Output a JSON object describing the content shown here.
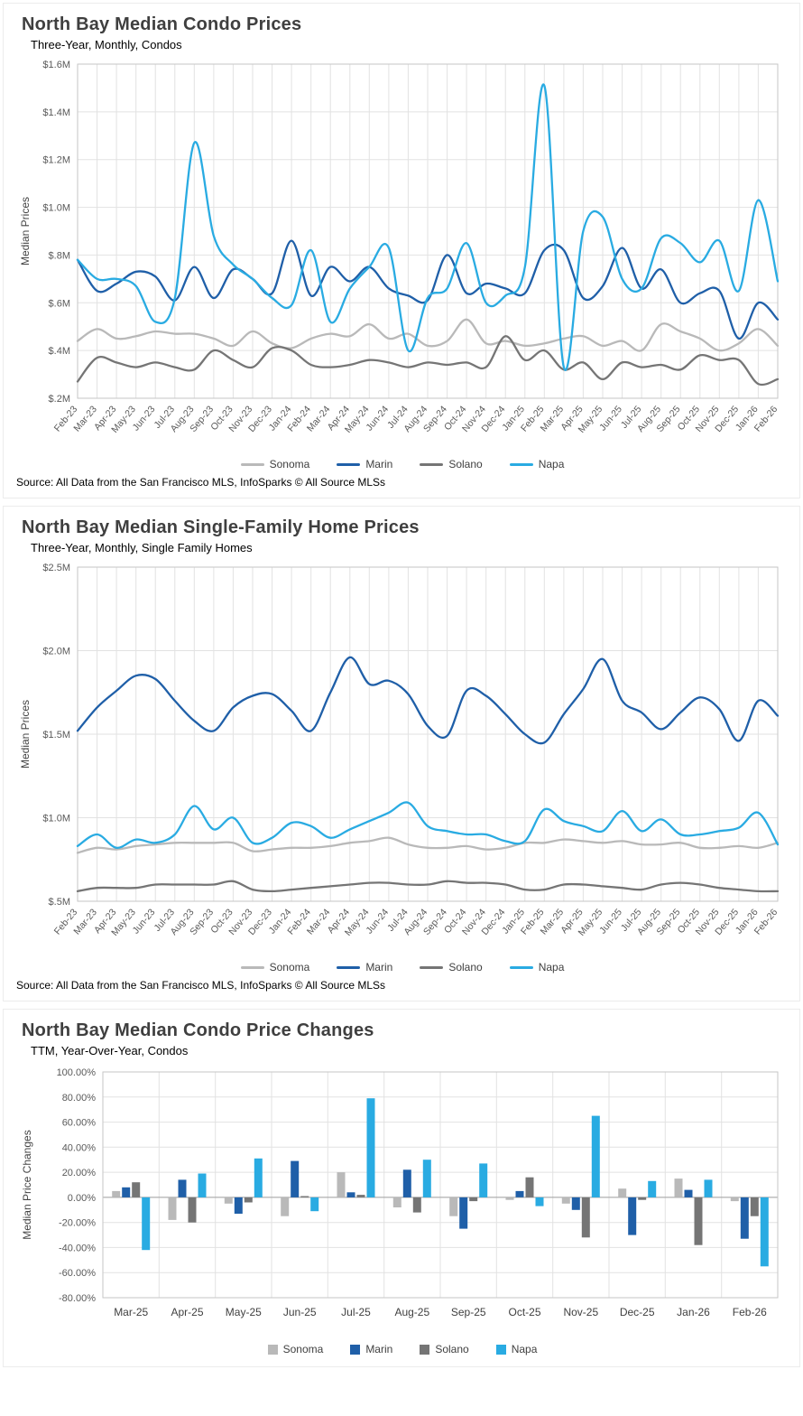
{
  "chart_data": [
    {
      "type": "line",
      "title": "North Bay Median Condo Prices",
      "subtitle": "Three-Year, Monthly, Condos",
      "ylabel": "Median Prices",
      "ylim": [
        0.2,
        1.6
      ],
      "ytick_step": 0.2,
      "ytick_format": "money_m",
      "grid": true,
      "legend_position": "bottom",
      "source": "Source: All Data from the San Francisco MLS, InfoSparks © All Source MLSs",
      "categories": [
        "Feb-23",
        "Mar-23",
        "Apr-23",
        "May-23",
        "Jun-23",
        "Jul-23",
        "Aug-23",
        "Sep-23",
        "Oct-23",
        "Nov-23",
        "Dec-23",
        "Jan-24",
        "Feb-24",
        "Mar-24",
        "Apr-24",
        "May-24",
        "Jun-24",
        "Jul-24",
        "Aug-24",
        "Sep-24",
        "Oct-24",
        "Nov-24",
        "Dec-24",
        "Jan-25",
        "Feb-25",
        "Mar-25",
        "Apr-25",
        "May-25",
        "Jun-25",
        "Jul-25",
        "Aug-25",
        "Sep-25",
        "Oct-25",
        "Nov-25",
        "Dec-25",
        "Jan-26",
        "Feb-26"
      ],
      "series": [
        {
          "name": "Sonoma",
          "color": "#b9b9b9",
          "values": [
            0.44,
            0.49,
            0.45,
            0.46,
            0.48,
            0.47,
            0.47,
            0.45,
            0.42,
            0.48,
            0.43,
            0.41,
            0.45,
            0.47,
            0.46,
            0.51,
            0.45,
            0.47,
            0.42,
            0.44,
            0.53,
            0.43,
            0.44,
            0.42,
            0.43,
            0.45,
            0.46,
            0.42,
            0.44,
            0.4,
            0.51,
            0.48,
            0.45,
            0.4,
            0.43,
            0.49,
            0.42
          ]
        },
        {
          "name": "Marin",
          "color": "#1f5fa8",
          "values": [
            0.78,
            0.65,
            0.68,
            0.73,
            0.71,
            0.61,
            0.75,
            0.62,
            0.74,
            0.7,
            0.64,
            0.86,
            0.63,
            0.75,
            0.69,
            0.75,
            0.66,
            0.63,
            0.61,
            0.8,
            0.64,
            0.68,
            0.66,
            0.64,
            0.82,
            0.82,
            0.62,
            0.67,
            0.83,
            0.66,
            0.74,
            0.6,
            0.64,
            0.65,
            0.45,
            0.6,
            0.53
          ]
        },
        {
          "name": "Solano",
          "color": "#757575",
          "values": [
            0.27,
            0.37,
            0.35,
            0.33,
            0.35,
            0.33,
            0.32,
            0.4,
            0.36,
            0.33,
            0.41,
            0.4,
            0.34,
            0.33,
            0.34,
            0.36,
            0.35,
            0.33,
            0.35,
            0.34,
            0.35,
            0.33,
            0.46,
            0.36,
            0.4,
            0.32,
            0.35,
            0.28,
            0.35,
            0.33,
            0.34,
            0.32,
            0.38,
            0.36,
            0.36,
            0.26,
            0.28
          ]
        },
        {
          "name": "Napa",
          "color": "#29abe2",
          "values": [
            0.78,
            0.7,
            0.7,
            0.67,
            0.52,
            0.62,
            1.27,
            0.88,
            0.76,
            0.7,
            0.62,
            0.59,
            0.82,
            0.52,
            0.66,
            0.75,
            0.83,
            0.4,
            0.62,
            0.66,
            0.85,
            0.6,
            0.63,
            0.75,
            1.51,
            0.33,
            0.9,
            0.96,
            0.7,
            0.66,
            0.87,
            0.85,
            0.77,
            0.86,
            0.65,
            1.03,
            0.69
          ]
        }
      ]
    },
    {
      "type": "line",
      "title": "North Bay Median Single-Family Home Prices",
      "subtitle": "Three-Year, Monthly, Single Family Homes",
      "ylabel": "Median Prices",
      "ylim": [
        0.5,
        2.5
      ],
      "ytick_step": 0.5,
      "ytick_format": "money_m",
      "grid": true,
      "legend_position": "bottom",
      "source": "Source: All Data from the San Francisco MLS, InfoSparks © All Source MLSs",
      "categories": [
        "Feb-23",
        "Mar-23",
        "Apr-23",
        "May-23",
        "Jun-23",
        "Jul-23",
        "Aug-23",
        "Sep-23",
        "Oct-23",
        "Nov-23",
        "Dec-23",
        "Jan-24",
        "Feb-24",
        "Mar-24",
        "Apr-24",
        "May-24",
        "Jun-24",
        "Jul-24",
        "Aug-24",
        "Sep-24",
        "Oct-24",
        "Nov-24",
        "Dec-24",
        "Jan-25",
        "Feb-25",
        "Mar-25",
        "Apr-25",
        "May-25",
        "Jun-25",
        "Jul-25",
        "Aug-25",
        "Sep-25",
        "Oct-25",
        "Nov-25",
        "Dec-25",
        "Jan-26",
        "Feb-26"
      ],
      "series": [
        {
          "name": "Sonoma",
          "color": "#b9b9b9",
          "values": [
            0.79,
            0.82,
            0.81,
            0.83,
            0.84,
            0.85,
            0.85,
            0.85,
            0.85,
            0.8,
            0.81,
            0.82,
            0.82,
            0.83,
            0.85,
            0.86,
            0.88,
            0.84,
            0.82,
            0.82,
            0.83,
            0.81,
            0.82,
            0.85,
            0.85,
            0.87,
            0.86,
            0.85,
            0.86,
            0.84,
            0.84,
            0.85,
            0.82,
            0.82,
            0.83,
            0.82,
            0.85
          ]
        },
        {
          "name": "Marin",
          "color": "#1f5fa8",
          "values": [
            1.52,
            1.66,
            1.76,
            1.85,
            1.83,
            1.7,
            1.58,
            1.52,
            1.66,
            1.73,
            1.74,
            1.64,
            1.52,
            1.75,
            1.96,
            1.8,
            1.82,
            1.74,
            1.55,
            1.49,
            1.76,
            1.73,
            1.62,
            1.5,
            1.45,
            1.62,
            1.77,
            1.95,
            1.7,
            1.63,
            1.53,
            1.63,
            1.72,
            1.65,
            1.46,
            1.7,
            1.61
          ]
        },
        {
          "name": "Solano",
          "color": "#757575",
          "values": [
            0.56,
            0.58,
            0.58,
            0.58,
            0.6,
            0.6,
            0.6,
            0.6,
            0.62,
            0.57,
            0.56,
            0.57,
            0.58,
            0.59,
            0.6,
            0.61,
            0.61,
            0.6,
            0.6,
            0.62,
            0.61,
            0.61,
            0.6,
            0.57,
            0.57,
            0.6,
            0.6,
            0.59,
            0.58,
            0.57,
            0.6,
            0.61,
            0.6,
            0.58,
            0.57,
            0.56,
            0.56
          ]
        },
        {
          "name": "Napa",
          "color": "#29abe2",
          "values": [
            0.83,
            0.9,
            0.82,
            0.87,
            0.85,
            0.9,
            1.07,
            0.93,
            1.0,
            0.85,
            0.88,
            0.97,
            0.95,
            0.88,
            0.93,
            0.98,
            1.03,
            1.09,
            0.95,
            0.92,
            0.9,
            0.9,
            0.86,
            0.86,
            1.05,
            0.98,
            0.95,
            0.92,
            1.04,
            0.92,
            0.99,
            0.9,
            0.9,
            0.92,
            0.94,
            1.03,
            0.84
          ]
        }
      ]
    },
    {
      "type": "bar",
      "title": "North Bay Median Condo Price Changes",
      "subtitle": "TTM, Year-Over-Year, Condos",
      "ylabel": "Median Price Changes",
      "ylim": [
        -80,
        100
      ],
      "ytick_step": 20,
      "ytick_format": "percent",
      "grid": true,
      "legend_position": "bottom",
      "categories": [
        "Mar-25",
        "Apr-25",
        "May-25",
        "Jun-25",
        "Jul-25",
        "Aug-25",
        "Sep-25",
        "Oct-25",
        "Nov-25",
        "Dec-25",
        "Jan-26",
        "Feb-26"
      ],
      "series": [
        {
          "name": "Sonoma",
          "color": "#b9b9b9",
          "values": [
            5,
            -18,
            -5,
            -15,
            20,
            -8,
            -15,
            -2,
            -5,
            7,
            15,
            -3
          ]
        },
        {
          "name": "Marin",
          "color": "#1f5fa8",
          "values": [
            8,
            14,
            -13,
            29,
            4,
            22,
            -25,
            5,
            -10,
            -30,
            6,
            -33
          ]
        },
        {
          "name": "Solano",
          "color": "#757575",
          "values": [
            12,
            -20,
            -4,
            1,
            2,
            -12,
            -3,
            16,
            -32,
            -2,
            -38,
            -15
          ]
        },
        {
          "name": "Napa",
          "color": "#29abe2",
          "values": [
            -42,
            19,
            31,
            -11,
            79,
            30,
            27,
            -7,
            65,
            13,
            14,
            -55
          ]
        }
      ]
    }
  ]
}
